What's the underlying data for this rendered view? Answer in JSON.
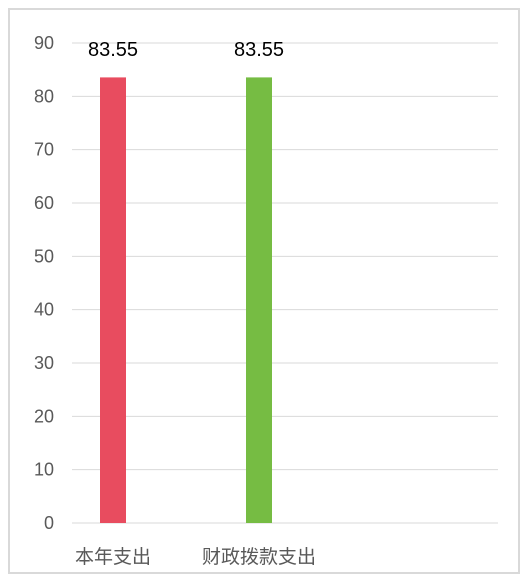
{
  "chart_data": {
    "type": "bar",
    "categories": [
      "本年支出",
      "财政拨款支出"
    ],
    "values": [
      83.55,
      83.55
    ],
    "data_labels": [
      "83.55",
      "83.55"
    ],
    "bar_colors": [
      "#e84c5f",
      "#76bc43"
    ],
    "ylim": [
      0,
      90
    ],
    "yticks": [
      0,
      10,
      20,
      30,
      40,
      50,
      60,
      70,
      80,
      90
    ],
    "ytick_labels": [
      "0",
      "10",
      "20",
      "30",
      "40",
      "50",
      "60",
      "70",
      "80",
      "90"
    ],
    "grid": true,
    "legend": "none"
  }
}
